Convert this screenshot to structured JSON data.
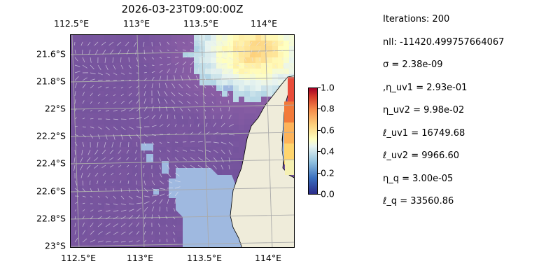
{
  "map": {
    "title": "2026-03-23T09:00:00Z",
    "lon_ticks": [
      "112.5°E",
      "113°E",
      "113.5°E",
      "114°E"
    ],
    "lat_ticks": [
      "21.6°S",
      "21.8°S",
      "22°S",
      "22.2°S",
      "22.4°S",
      "22.6°S",
      "22.8°S",
      "23°S"
    ],
    "extent": {
      "lon": [
        112.5,
        114.2
      ],
      "lat": [
        -23.0,
        -21.45
      ]
    },
    "ocean_color": "#9fb9e0",
    "land_color": "#efecda",
    "colormap": "RdYlBu_r"
  },
  "colorbar": {
    "ticks": [
      "1.0",
      "0.8",
      "0.6",
      "0.4",
      "0.2",
      "0.0"
    ],
    "range": [
      0.0,
      1.0
    ]
  },
  "params": {
    "iterations": "Iterations: 200",
    "nll": "nll: -11420.499757664067",
    "sigma": "σ = 2.38e-09",
    "eta_uv1": ",η_uv1 = 2.93e-01",
    "eta_uv2": "η_uv2 = 9.98e-02",
    "ell_uv1": "ℓ_uv1 = 16749.68",
    "ell_uv2": "ℓ_uv2 = 9966.60",
    "eta_q": "η_q = 3.00e-05",
    "ell_q": "ℓ_q = 33560.86"
  }
}
